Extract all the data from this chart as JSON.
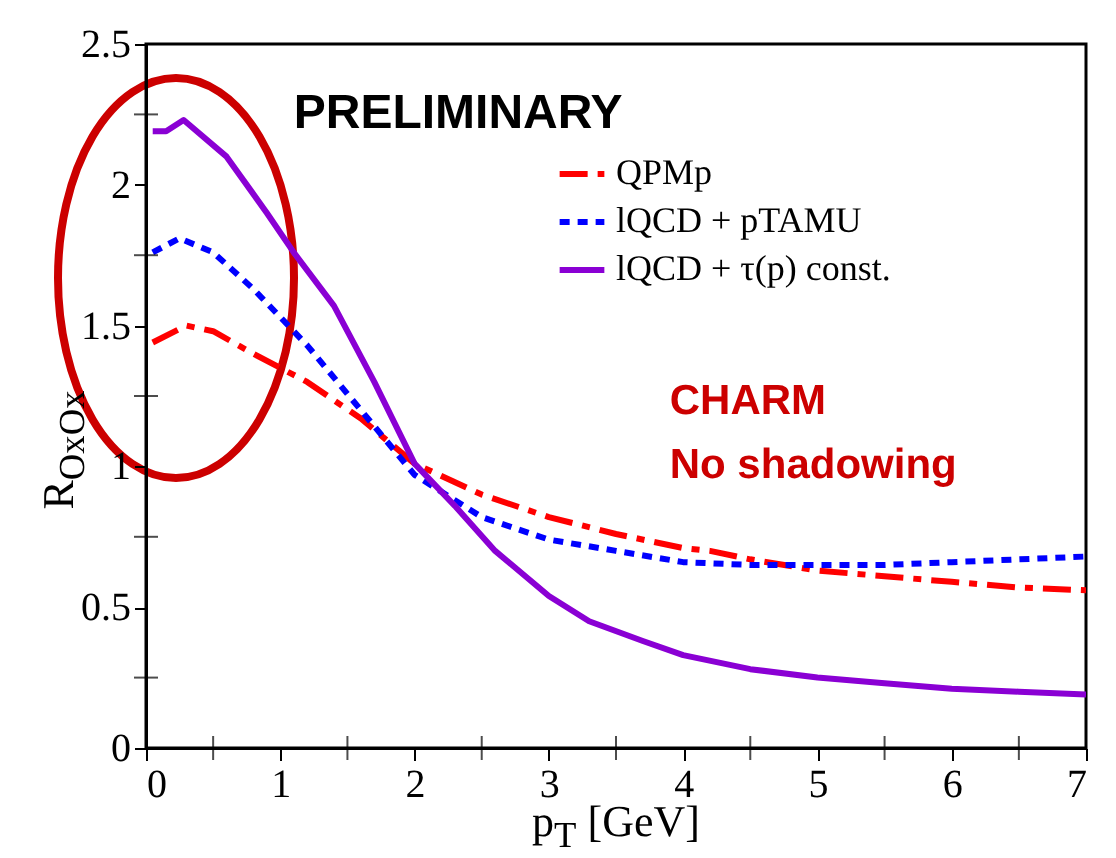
{
  "chart_data": {
    "type": "line",
    "xlabel": "p$_{T}$ [GeV]",
    "ylabel": "R$_{OxOx}$",
    "annotations": [
      "PRELIMINARY",
      "CHARM",
      "No shadowing"
    ],
    "xlim": [
      0,
      7
    ],
    "xticks": [
      0,
      {
        "value": 0.5,
        "label": null
      },
      1,
      {
        "value": 1.5,
        "label": null
      },
      2,
      {
        "value": 2.5,
        "label": null
      },
      3,
      {
        "value": 3.5,
        "label": null
      },
      4,
      {
        "value": 4.5,
        "label": null
      },
      5,
      {
        "value": 5.5,
        "label": null
      },
      6,
      {
        "value": 6.5,
        "label": null
      },
      7
    ],
    "ylim": [
      0,
      2.5
    ],
    "yticks": [
      0,
      {
        "value": 0.25,
        "label": null
      },
      0.5,
      {
        "value": 0.75,
        "label": null
      },
      1,
      {
        "value": 1.25,
        "label": null
      },
      1.5,
      {
        "value": 1.75,
        "label": null
      },
      2,
      {
        "value": 2.25,
        "label": null
      },
      2.5
    ],
    "grid": false,
    "legend": "top right",
    "series": [
      {
        "name": "QPMp",
        "color": "#ff0000",
        "line_style": "dashed",
        "x": [
          0.05,
          0.3,
          0.5,
          0.8,
          1.2,
          1.6,
          2.0,
          2.5,
          3.0,
          3.5,
          4.0,
          4.2,
          4.5,
          5.0,
          5.5,
          6.0,
          6.5,
          7.0
        ],
        "values": [
          1.44,
          1.5,
          1.48,
          1.4,
          1.3,
          1.17,
          1.01,
          0.9,
          0.82,
          0.76,
          0.71,
          0.7,
          0.67,
          0.63,
          0.61,
          0.59,
          0.57,
          0.56
        ]
      },
      {
        "name": "lQCD + pTAMU",
        "color": "#0000ff",
        "line_style": "dotted",
        "x": [
          0.05,
          0.25,
          0.5,
          0.8,
          1.2,
          1.6,
          2.0,
          2.5,
          3.0,
          3.5,
          4.0,
          4.5,
          5.0,
          5.5,
          6.0,
          6.5,
          7.0
        ],
        "values": [
          1.76,
          1.81,
          1.76,
          1.63,
          1.43,
          1.2,
          0.97,
          0.82,
          0.74,
          0.7,
          0.66,
          0.65,
          0.65,
          0.65,
          0.66,
          0.67,
          0.68
        ]
      },
      {
        "name": "lQCD + τ(p) const.",
        "color": "#8a00d4",
        "line_style": "solid",
        "x": [
          0.05,
          0.15,
          0.28,
          0.6,
          0.9,
          1.1,
          1.4,
          1.7,
          2.0,
          2.3,
          2.6,
          3.0,
          3.3,
          3.7,
          4.0,
          4.5,
          5.0,
          5.5,
          6.0,
          6.5,
          7.0
        ],
        "values": [
          2.19,
          2.19,
          2.23,
          2.1,
          1.9,
          1.76,
          1.57,
          1.3,
          1.01,
          0.86,
          0.7,
          0.54,
          0.45,
          0.38,
          0.33,
          0.28,
          0.25,
          0.23,
          0.21,
          0.2,
          0.19
        ]
      }
    ]
  }
}
